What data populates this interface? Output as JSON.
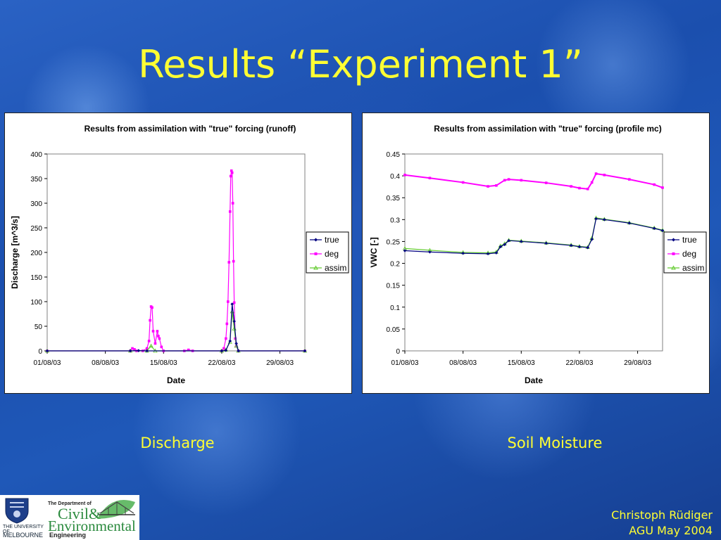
{
  "slide": {
    "title": "Results “Experiment 1”",
    "caption_left": "Discharge",
    "caption_right": "Soil Moisture",
    "author": "Christoph Rüdiger",
    "event": "AGU May 2004"
  },
  "logos": {
    "university_line1": "THE UNIVERSITY OF",
    "university_line2": "MELBOURNE",
    "dept_line1": "The Department of",
    "dept_line2": "Civil&",
    "dept_line3": "Environmental",
    "dept_line4": "Engineering"
  },
  "chart_data": [
    {
      "type": "line",
      "title": "Results from assimilation with \"true\" forcing (runoff)",
      "xlabel": "Date",
      "ylabel": "Discharge [m^3/s]",
      "xlim": [
        "01/08/03",
        "01/09/03"
      ],
      "xticks": [
        "01/08/03",
        "08/08/03",
        "15/08/03",
        "22/08/03",
        "29/08/03"
      ],
      "ylim": [
        0,
        400
      ],
      "yticks": [
        "0",
        "50",
        "100",
        "150",
        "200",
        "250",
        "300",
        "350",
        "400"
      ],
      "legend": "right",
      "series": [
        {
          "name": "true",
          "color": "#000080",
          "marker": "diamond",
          "points": [
            [
              "01/08/03",
              0
            ],
            [
              "11/08/03",
              0
            ],
            [
              "12/08/03",
              0.5
            ],
            [
              "13/08/03",
              0
            ],
            [
              "22/08/03",
              0
            ],
            [
              "22/08/03 12:00",
              1
            ],
            [
              "23/08/03",
              20
            ],
            [
              "23/08/03 06:00",
              95
            ],
            [
              "23/08/03 12:00",
              60
            ],
            [
              "23/08/03 18:00",
              15
            ],
            [
              "24/08/03",
              0
            ],
            [
              "01/09/03",
              0
            ]
          ]
        },
        {
          "name": "deg",
          "color": "#ff00ff",
          "marker": "square",
          "points": [
            [
              "01/08/03",
              0
            ],
            [
              "11/08/03",
              0
            ],
            [
              "11/08/03 06:00",
              5
            ],
            [
              "11/08/03 12:00",
              3
            ],
            [
              "11/08/03 18:00",
              0
            ],
            [
              "12/08/03 12:00",
              0
            ],
            [
              "13/08/03",
              5
            ],
            [
              "13/08/03 06:00",
              20
            ],
            [
              "13/08/03 09:00",
              62
            ],
            [
              "13/08/03 12:00",
              90
            ],
            [
              "13/08/03 15:00",
              88
            ],
            [
              "13/08/03 18:00",
              40
            ],
            [
              "14/08/03",
              15
            ],
            [
              "14/08/03 06:00",
              40
            ],
            [
              "14/08/03 09:00",
              30
            ],
            [
              "14/08/03 12:00",
              25
            ],
            [
              "14/08/03 18:00",
              8
            ],
            [
              "15/08/03",
              0
            ],
            [
              "17/08/03 12:00",
              0
            ],
            [
              "18/08/03",
              2
            ],
            [
              "18/08/03 12:00",
              0
            ],
            [
              "22/08/03",
              0
            ],
            [
              "22/08/03 06:00",
              5
            ],
            [
              "22/08/03 12:00",
              25
            ],
            [
              "22/08/03 15:00",
              55
            ],
            [
              "22/08/03 18:00",
              100
            ],
            [
              "22/08/03 21:00",
              180
            ],
            [
              "23/08/03",
              283
            ],
            [
              "23/08/03 02:00",
              355
            ],
            [
              "23/08/03 04:00",
              366
            ],
            [
              "23/08/03 06:00",
              362
            ],
            [
              "23/08/03 08:00",
              300
            ],
            [
              "23/08/03 10:00",
              182
            ],
            [
              "23/08/03 12:00",
              98
            ],
            [
              "23/08/03 15:00",
              25
            ],
            [
              "23/08/03 18:00",
              10
            ],
            [
              "24/08/03",
              0
            ],
            [
              "01/09/03",
              0
            ]
          ]
        },
        {
          "name": "assim",
          "color": "#66cc33",
          "marker": "triangle",
          "points": [
            [
              "01/08/03",
              0
            ],
            [
              "11/08/03",
              0
            ],
            [
              "13/08/03",
              0
            ],
            [
              "13/08/03 12:00",
              10
            ],
            [
              "14/08/03",
              0
            ],
            [
              "22/08/03",
              0
            ],
            [
              "22/08/03 12:00",
              2
            ],
            [
              "23/08/03",
              18
            ],
            [
              "23/08/03 06:00",
              80
            ],
            [
              "23/08/03 12:00",
              45
            ],
            [
              "23/08/03 18:00",
              10
            ],
            [
              "24/08/03",
              0
            ],
            [
              "01/09/03",
              0
            ]
          ]
        }
      ]
    },
    {
      "type": "line",
      "title": "Results from assimilation with \"true\" forcing (profile mc)",
      "xlabel": "Date",
      "ylabel": "VWC [-]",
      "xlim": [
        "01/08/03",
        "01/09/03"
      ],
      "xticks": [
        "01/08/03",
        "08/08/03",
        "15/08/03",
        "22/08/03",
        "29/08/03"
      ],
      "ylim": [
        0,
        0.45
      ],
      "yticks": [
        "0",
        "0.05",
        "0.1",
        "0.15",
        "0.2",
        "0.25",
        "0.3",
        "0.35",
        "0.4",
        "0.45"
      ],
      "legend": "right",
      "series": [
        {
          "name": "true",
          "color": "#000080",
          "marker": "diamond",
          "points": [
            [
              "01/08/03",
              0.229
            ],
            [
              "04/08/03",
              0.226
            ],
            [
              "08/08/03",
              0.223
            ],
            [
              "11/08/03",
              0.222
            ],
            [
              "12/08/03",
              0.224
            ],
            [
              "12/08/03 12:00",
              0.238
            ],
            [
              "13/08/03",
              0.243
            ],
            [
              "13/08/03 12:00",
              0.252
            ],
            [
              "15/08/03",
              0.25
            ],
            [
              "18/08/03",
              0.246
            ],
            [
              "21/08/03",
              0.241
            ],
            [
              "22/08/03",
              0.238
            ],
            [
              "23/08/03",
              0.236
            ],
            [
              "23/08/03 12:00",
              0.255
            ],
            [
              "24/08/03",
              0.302
            ],
            [
              "25/08/03",
              0.3
            ],
            [
              "28/08/03",
              0.292
            ],
            [
              "31/08/03",
              0.28
            ],
            [
              "01/09/03",
              0.275
            ]
          ]
        },
        {
          "name": "deg",
          "color": "#ff00ff",
          "marker": "square",
          "points": [
            [
              "01/08/03",
              0.402
            ],
            [
              "04/08/03",
              0.395
            ],
            [
              "08/08/03",
              0.385
            ],
            [
              "11/08/03",
              0.376
            ],
            [
              "12/08/03",
              0.378
            ],
            [
              "13/08/03",
              0.39
            ],
            [
              "13/08/03 12:00",
              0.392
            ],
            [
              "15/08/03",
              0.39
            ],
            [
              "18/08/03",
              0.384
            ],
            [
              "21/08/03",
              0.376
            ],
            [
              "22/08/03",
              0.372
            ],
            [
              "23/08/03",
              0.37
            ],
            [
              "23/08/03 12:00",
              0.385
            ],
            [
              "24/08/03",
              0.405
            ],
            [
              "25/08/03",
              0.402
            ],
            [
              "28/08/03",
              0.392
            ],
            [
              "31/08/03",
              0.38
            ],
            [
              "01/09/03",
              0.373
            ]
          ]
        },
        {
          "name": "assim",
          "color": "#66cc33",
          "marker": "triangle",
          "points": [
            [
              "01/08/03",
              0.234
            ],
            [
              "04/08/03",
              0.23
            ],
            [
              "08/08/03",
              0.225
            ],
            [
              "11/08/03",
              0.224
            ],
            [
              "12/08/03",
              0.226
            ],
            [
              "12/08/03 12:00",
              0.24
            ],
            [
              "13/08/03",
              0.245
            ],
            [
              "13/08/03 12:00",
              0.253
            ],
            [
              "15/08/03",
              0.251
            ],
            [
              "18/08/03",
              0.247
            ],
            [
              "21/08/03",
              0.242
            ],
            [
              "22/08/03",
              0.239
            ],
            [
              "23/08/03",
              0.237
            ],
            [
              "23/08/03 12:00",
              0.258
            ],
            [
              "24/08/03",
              0.304
            ],
            [
              "25/08/03",
              0.301
            ],
            [
              "28/08/03",
              0.293
            ],
            [
              "31/08/03",
              0.281
            ],
            [
              "01/09/03",
              0.276
            ]
          ]
        }
      ]
    }
  ]
}
